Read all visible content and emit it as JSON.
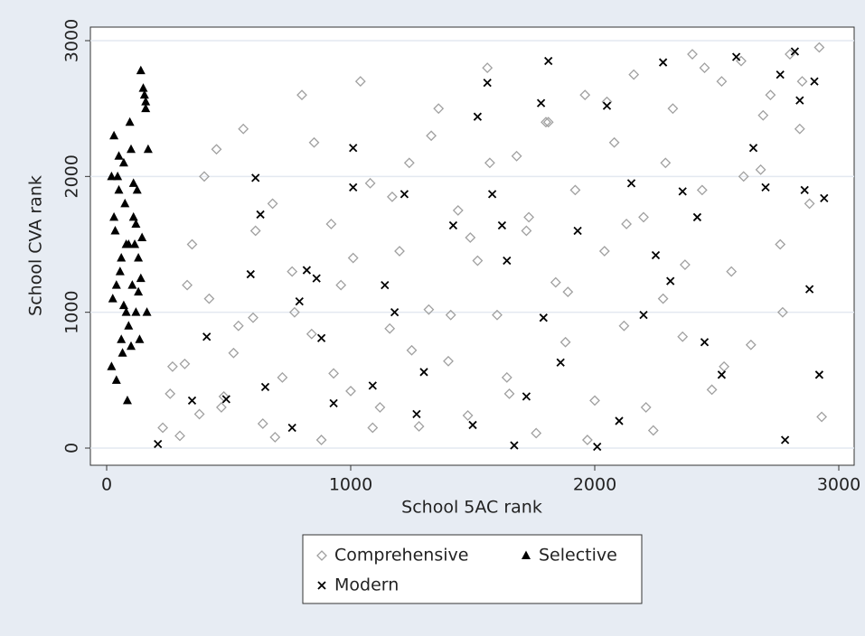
{
  "chart_data": {
    "type": "scatter",
    "xlabel": "School 5AC rank",
    "ylabel": "School CVA rank",
    "xlim": [
      0,
      3000
    ],
    "ylim": [
      0,
      3000
    ],
    "xticks": [
      0,
      1000,
      2000,
      3000
    ],
    "yticks": [
      0,
      1000,
      2000,
      3000
    ],
    "grid": true,
    "legend": "bottom",
    "series": [
      {
        "name": "Comprehensive",
        "color": "#a0a0a0",
        "marker": "diamond",
        "x": [
          230,
          260,
          300,
          320,
          350,
          380,
          420,
          450,
          480,
          520,
          560,
          600,
          640,
          680,
          720,
          760,
          800,
          840,
          880,
          920,
          960,
          1000,
          1040,
          1080,
          1120,
          1160,
          1200,
          1240,
          1280,
          1320,
          1360,
          1400,
          1440,
          1480,
          1520,
          1560,
          1600,
          1640,
          1680,
          1720,
          1760,
          1800,
          1840,
          1880,
          1920,
          1960,
          2000,
          2040,
          2080,
          2120,
          2160,
          2200,
          2240,
          2280,
          2320,
          2360,
          2400,
          2440,
          2480,
          2520,
          2560,
          2600,
          2640,
          2680,
          2720,
          2760,
          2800,
          2840,
          2880,
          2920,
          270,
          330,
          400,
          470,
          540,
          610,
          690,
          770,
          850,
          930,
          1010,
          1090,
          1170,
          1250,
          1330,
          1410,
          1490,
          1570,
          1650,
          1730,
          1810,
          1890,
          1970,
          2050,
          2130,
          2210,
          2290,
          2370,
          2450,
          2530,
          2610,
          2690,
          2770,
          2850,
          2930
        ],
        "values": [
          150,
          400,
          90,
          620,
          1500,
          250,
          1100,
          2200,
          380,
          700,
          2350,
          960,
          180,
          1800,
          520,
          1300,
          2600,
          840,
          60,
          1650,
          1200,
          420,
          2700,
          1950,
          300,
          880,
          1450,
          2100,
          160,
          1020,
          2500,
          640,
          1750,
          240,
          1380,
          2800,
          980,
          520,
          2150,
          1600,
          110,
          2400,
          1220,
          780,
          1900,
          2600,
          350,
          1450,
          2250,
          900,
          2750,
          1700,
          130,
          1100,
          2500,
          820,
          2900,
          1900,
          430,
          2700,
          1300,
          2850,
          760,
          2050,
          2600,
          1500,
          2900,
          2350,
          1800,
          2950,
          600,
          1200,
          2000,
          300,
          900,
          1600,
          80,
          1000,
          2250,
          550,
          1400,
          150,
          1850,
          720,
          2300,
          980,
          1550,
          2100,
          400,
          1700,
          2400,
          1150,
          60,
          2550,
          1650,
          300,
          2100,
          1350,
          2800,
          600,
          2000,
          2450,
          1000,
          2700,
          230
        ]
      },
      {
        "name": "Selective",
        "color": "#000000",
        "marker": "triangle",
        "x": [
          20,
          30,
          40,
          50,
          60,
          70,
          80,
          90,
          100,
          110,
          120,
          130,
          140,
          150,
          160,
          170,
          25,
          35,
          45,
          55,
          65,
          75,
          85,
          95,
          105,
          115,
          125,
          135,
          145,
          155,
          165,
          20,
          40,
          60,
          80,
          100,
          120,
          140,
          160,
          30,
          50,
          70,
          90,
          110,
          130
        ],
        "values": [
          600,
          2300,
          1200,
          1900,
          800,
          2100,
          1500,
          900,
          2200,
          1700,
          1000,
          1400,
          2780,
          2650,
          2500,
          2200,
          1100,
          1600,
          2000,
          1300,
          700,
          1800,
          350,
          2400,
          1200,
          1500,
          1900,
          800,
          1550,
          2600,
          1000,
          2000,
          500,
          1400,
          1000,
          750,
          1650,
          1250,
          2550,
          1700,
          2150,
          1050,
          1500,
          1950,
          1150
        ]
      },
      {
        "name": "Modern",
        "color": "#000000",
        "marker": "x",
        "x": [
          210,
          350,
          410,
          490,
          590,
          610,
          630,
          650,
          760,
          790,
          820,
          860,
          880,
          930,
          1010,
          1010,
          1090,
          1140,
          1180,
          1220,
          1270,
          1300,
          1420,
          1500,
          1520,
          1560,
          1580,
          1620,
          1640,
          1670,
          1720,
          1780,
          1790,
          1810,
          1860,
          1930,
          2010,
          2050,
          2100,
          2150,
          2200,
          2250,
          2280,
          2310,
          2360,
          2420,
          2450,
          2520,
          2580,
          2650,
          2700,
          2780,
          2820,
          2860,
          2900,
          2920,
          2940,
          2760,
          2840,
          2880
        ],
        "values": [
          30,
          350,
          820,
          360,
          1280,
          1990,
          1720,
          450,
          150,
          1080,
          1310,
          1250,
          810,
          330,
          1920,
          2210,
          460,
          1200,
          1000,
          1870,
          250,
          560,
          1640,
          170,
          2440,
          2690,
          1870,
          1640,
          1380,
          20,
          380,
          2540,
          960,
          2850,
          630,
          1600,
          10,
          2520,
          200,
          1950,
          980,
          1420,
          2840,
          1230,
          1890,
          1700,
          780,
          540,
          2880,
          2210,
          1920,
          60,
          2920,
          1900,
          2700,
          540,
          1840,
          2750,
          2560,
          1170
        ]
      }
    ]
  }
}
